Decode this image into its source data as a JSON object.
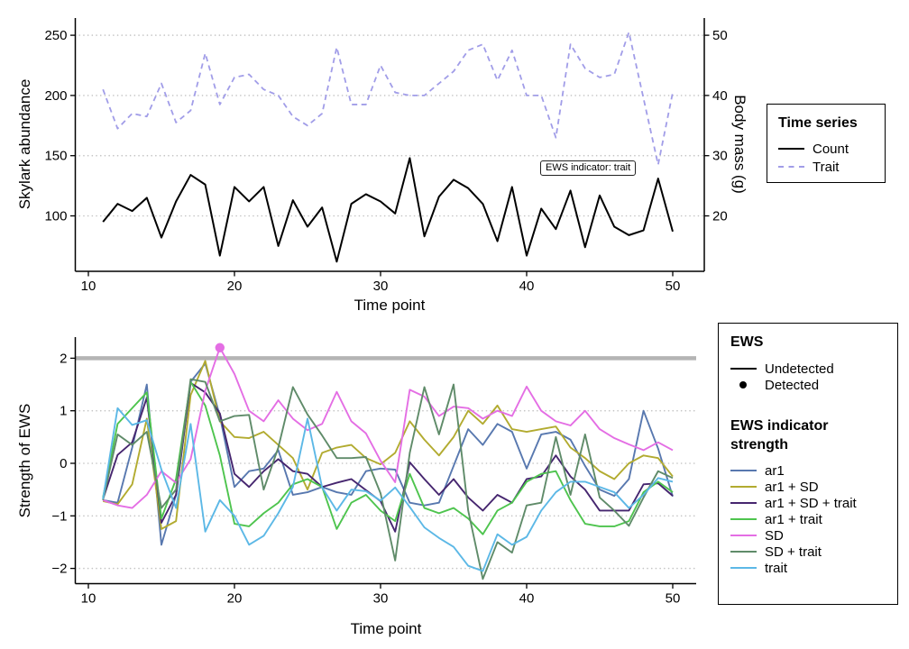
{
  "annotation": {
    "text": "EWS indicator: trait"
  },
  "top_panel": {
    "x_title": "Time point",
    "y_left_title": "Skylark abundance",
    "y_right_title": "Body mass (g)"
  },
  "bottom_panel": {
    "x_title": "Time point",
    "y_title": "Strength of EWS"
  },
  "legend_time_series": {
    "title": "Time series",
    "entries": [
      {
        "label": "Count"
      },
      {
        "label": "Trait"
      }
    ]
  },
  "legend_ews": {
    "title": "EWS",
    "entries": [
      {
        "label": "Undetected"
      },
      {
        "label": "Detected"
      }
    ]
  },
  "legend_strength": {
    "title_line1": "EWS indicator",
    "title_line2": "strength",
    "entries": [
      {
        "label": "ar1"
      },
      {
        "label": "ar1 + SD"
      },
      {
        "label": "ar1 + SD + trait"
      },
      {
        "label": "ar1 + trait"
      },
      {
        "label": "SD"
      },
      {
        "label": "SD + trait"
      },
      {
        "label": "trait"
      }
    ]
  },
  "colors": {
    "grid": "#c4c4c4",
    "threshold": "#b4b4b4",
    "axis": "#000000"
  },
  "chart_data": [
    {
      "type": "line",
      "title": "",
      "xlabel": "Time point",
      "x_ticks": [
        10,
        20,
        30,
        40,
        50
      ],
      "ylabel_left": "Skylark abundance",
      "y_left_ticks": [
        100,
        150,
        200,
        250
      ],
      "ylabel_right": "Body mass (g)",
      "y_right_ticks": [
        20,
        30,
        40,
        50
      ],
      "grid": "dotted-horizontal",
      "annotation": "EWS indicator: trait",
      "x": [
        11,
        12,
        13,
        14,
        15,
        16,
        17,
        18,
        19,
        20,
        21,
        22,
        23,
        24,
        25,
        26,
        27,
        28,
        29,
        30,
        31,
        32,
        33,
        34,
        35,
        36,
        37,
        38,
        39,
        40,
        41,
        42,
        43,
        44,
        45,
        46,
        47,
        48,
        49,
        50
      ],
      "series": [
        {
          "name": "Count",
          "axis": "left",
          "style": "solid",
          "color": "#000000",
          "values": [
            95,
            110,
            104,
            115,
            82,
            112,
            134,
            126,
            67,
            124,
            112,
            124,
            75,
            113,
            91,
            107,
            62,
            110,
            118,
            112,
            102,
            148,
            83,
            116,
            130,
            123,
            110,
            79,
            124,
            67,
            106,
            89,
            121,
            74,
            117,
            91,
            84,
            88,
            131,
            87
          ]
        },
        {
          "name": "Trait",
          "axis": "right",
          "style": "dashed",
          "color": "#a19de8",
          "values": [
            41,
            34.5,
            37,
            36.5,
            42,
            35.5,
            37.5,
            47,
            38.5,
            43,
            43.5,
            41,
            40,
            36.5,
            35,
            37,
            48,
            38.5,
            38.5,
            45,
            40.5,
            40,
            40,
            42,
            44,
            47.5,
            48.5,
            42.5,
            47.5,
            40,
            40,
            33,
            48.5,
            44.5,
            43,
            43.5,
            50.5,
            39.5,
            28.5,
            40.5
          ]
        }
      ]
    },
    {
      "type": "line",
      "title": "",
      "xlabel": "Time point",
      "ylabel": "Strength of EWS",
      "x_ticks": [
        10,
        20,
        30,
        40,
        50
      ],
      "y_ticks": [
        2,
        1,
        0,
        -1,
        -2
      ],
      "ylim": [
        -2.45,
        2.35
      ],
      "grid": "dotted-horizontal",
      "threshold": 2,
      "detected_point": {
        "series": "SD",
        "x": 19,
        "y": 2.2
      },
      "x": [
        11,
        12,
        13,
        14,
        15,
        16,
        17,
        18,
        19,
        20,
        21,
        22,
        23,
        24,
        25,
        26,
        27,
        28,
        29,
        30,
        31,
        32,
        33,
        34,
        35,
        36,
        37,
        38,
        39,
        40,
        41,
        42,
        43,
        44,
        45,
        46,
        47,
        48,
        49,
        50
      ],
      "series": [
        {
          "name": "ar1",
          "color": "#5878af",
          "values": [
            -0.7,
            -0.75,
            0.3,
            1.5,
            -1.55,
            -0.6,
            1.55,
            1.9,
            0.9,
            -0.45,
            -0.15,
            -0.1,
            0.25,
            -0.6,
            -0.55,
            -0.45,
            -0.55,
            -0.6,
            -0.15,
            -0.1,
            -0.12,
            -0.75,
            -0.8,
            -0.75,
            -0.05,
            0.65,
            0.35,
            0.75,
            0.6,
            -0.1,
            0.55,
            0.6,
            0.45,
            -0.05,
            -0.5,
            -0.62,
            -0.3,
            1.0,
            0.28,
            -0.63
          ]
        },
        {
          "name": "ar1 + SD",
          "color": "#b2ab30",
          "values": [
            -0.72,
            -0.78,
            -0.4,
            0.85,
            -1.25,
            -1.1,
            1.3,
            1.95,
            0.8,
            0.5,
            0.48,
            0.6,
            0.35,
            0.1,
            -0.5,
            0.2,
            0.3,
            0.35,
            0.1,
            -0.02,
            0.2,
            0.8,
            0.45,
            0.15,
            0.5,
            1.0,
            0.75,
            1.1,
            0.65,
            0.6,
            0.65,
            0.7,
            0.3,
            0.1,
            -0.15,
            -0.3,
            0.0,
            0.15,
            0.1,
            -0.25
          ]
        },
        {
          "name": "ar1 + SD + trait",
          "color": "#46266f",
          "values": [
            -0.68,
            0.16,
            0.4,
            1.25,
            -1.13,
            -0.6,
            1.53,
            1.35,
            0.95,
            -0.2,
            -0.45,
            -0.15,
            0.08,
            -0.15,
            -0.2,
            -0.45,
            -0.37,
            -0.3,
            -0.51,
            -0.72,
            -1.3,
            0.02,
            -0.3,
            -0.6,
            -0.3,
            -0.65,
            -0.9,
            -0.6,
            -0.75,
            -0.3,
            -0.25,
            0.15,
            -0.25,
            -0.5,
            -0.9,
            -0.9,
            -0.9,
            -0.4,
            -0.38,
            -0.62
          ]
        },
        {
          "name": "ar1 + trait",
          "color": "#4ec44e",
          "values": [
            -0.65,
            0.75,
            1.05,
            1.35,
            -1.05,
            -0.3,
            1.55,
            1.1,
            0.15,
            -1.15,
            -1.2,
            -0.95,
            -0.75,
            -0.4,
            -0.3,
            -0.45,
            -1.25,
            -0.75,
            -0.6,
            -0.9,
            -1.1,
            -0.2,
            -0.85,
            -0.95,
            -0.85,
            -1.05,
            -1.35,
            -0.9,
            -0.75,
            -0.35,
            -0.2,
            -0.15,
            -0.7,
            -1.15,
            -1.2,
            -1.2,
            -1.1,
            -0.55,
            -0.35,
            -0.55
          ]
        },
        {
          "name": "SD",
          "color": "#e46ee4",
          "values": [
            -0.7,
            -0.8,
            -0.85,
            -0.6,
            -0.15,
            -0.37,
            0.08,
            1.38,
            2.2,
            1.7,
            1.0,
            0.8,
            1.2,
            0.85,
            0.63,
            0.75,
            1.36,
            0.8,
            0.57,
            0.05,
            -0.36,
            1.4,
            1.27,
            0.9,
            1.08,
            1.05,
            0.85,
            1.0,
            0.9,
            1.46,
            1.0,
            0.8,
            0.72,
            1.0,
            0.65,
            0.48,
            0.36,
            0.25,
            0.4,
            0.25
          ]
        },
        {
          "name": "SD + trait",
          "color": "#5f8b69",
          "values": [
            -0.7,
            0.55,
            0.35,
            0.6,
            -0.85,
            -0.5,
            1.6,
            1.55,
            0.8,
            0.9,
            0.92,
            -0.5,
            0.3,
            1.45,
            0.93,
            0.53,
            0.1,
            0.1,
            0.12,
            -0.57,
            -1.85,
            0.2,
            1.45,
            0.55,
            1.5,
            -0.9,
            -2.2,
            -1.5,
            -1.7,
            -0.8,
            -0.75,
            0.5,
            -0.6,
            0.55,
            -0.65,
            -0.9,
            -1.19,
            -0.65,
            -0.15,
            -0.28
          ]
        },
        {
          "name": "trait",
          "color": "#5cb8e6",
          "values": [
            -0.68,
            1.05,
            0.73,
            0.82,
            -0.12,
            -0.85,
            0.75,
            -1.3,
            -0.7,
            -1.0,
            -1.55,
            -1.38,
            -0.95,
            -0.45,
            0.85,
            -0.46,
            -0.9,
            -0.5,
            -0.53,
            -0.71,
            -0.46,
            -0.83,
            -1.22,
            -1.42,
            -1.59,
            -1.95,
            -2.05,
            -1.35,
            -1.55,
            -1.4,
            -0.9,
            -0.55,
            -0.35,
            -0.35,
            -0.45,
            -0.55,
            -0.85,
            -0.6,
            -0.28,
            -0.35
          ]
        }
      ]
    }
  ]
}
